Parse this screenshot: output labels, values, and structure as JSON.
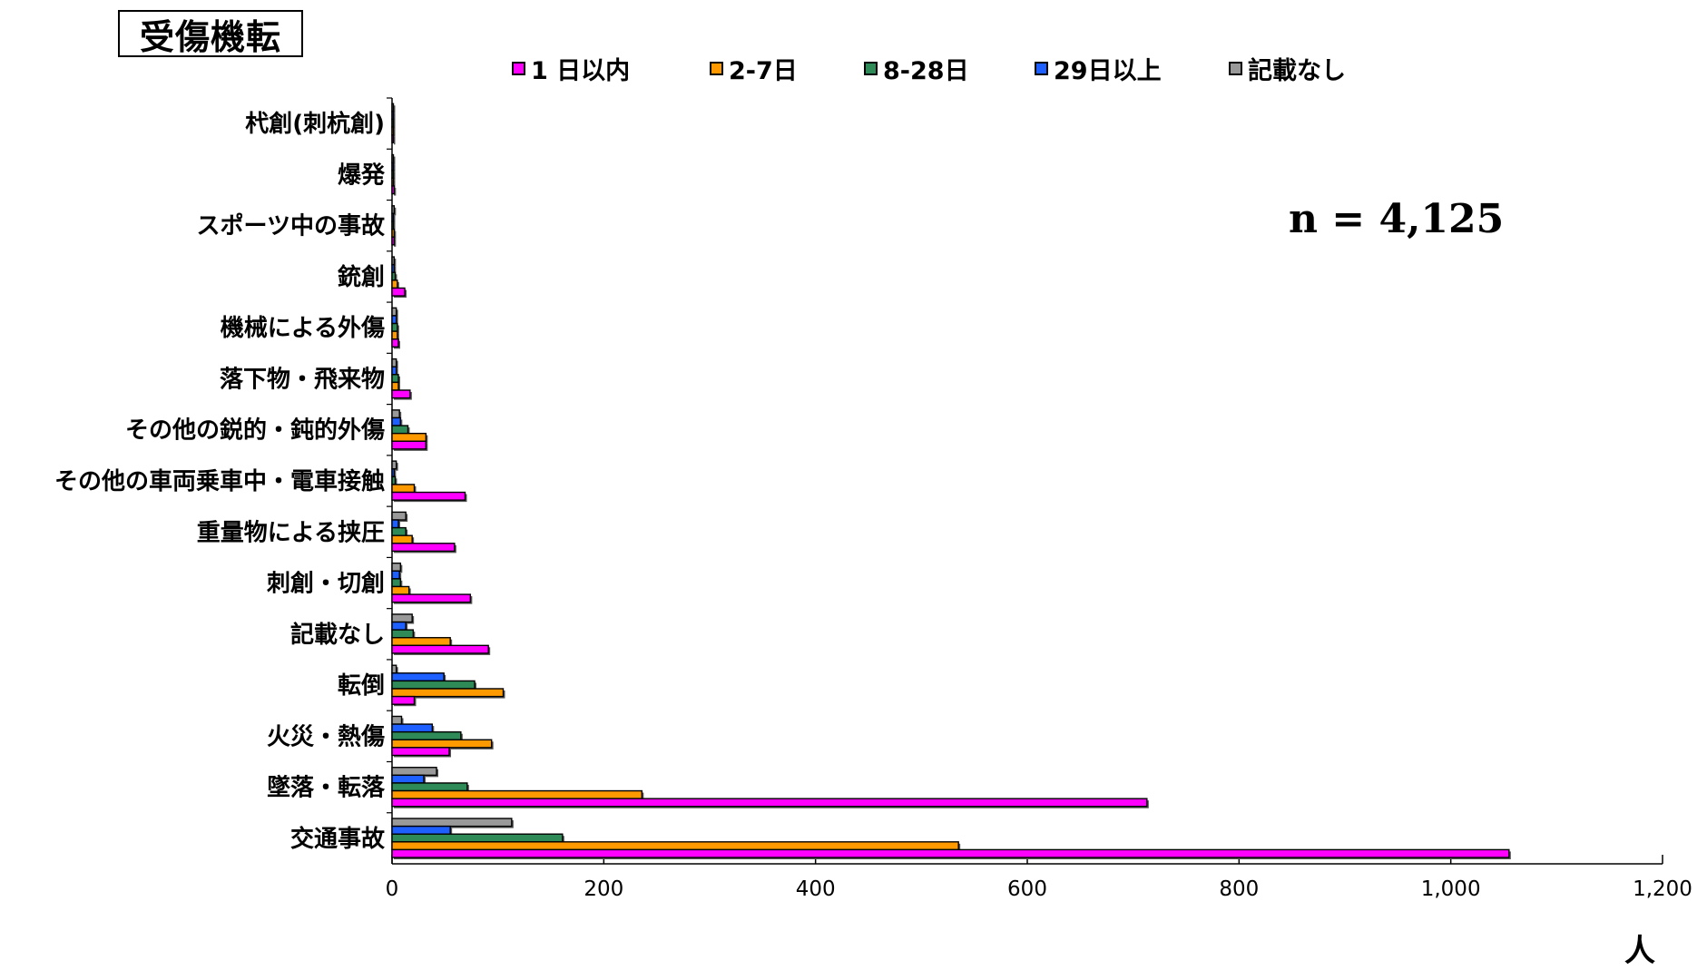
{
  "chart_data": {
    "type": "bar",
    "orientation": "horizontal",
    "title": "受傷機転",
    "annotation": "n = 4,125",
    "xlabel": "人",
    "xlim": [
      0,
      1200
    ],
    "x_ticks": [
      "0",
      "200",
      "400",
      "600",
      "800",
      "1,000",
      "1,200"
    ],
    "categories": [
      "交通事故",
      "墜落・転落",
      "火災・熱傷",
      "転倒",
      "記載なし",
      "刺創・切創",
      "重量物による挟圧",
      "その他の車両乗車中・電車接触",
      "その他の鋭的・鈍的外傷",
      "落下物・飛来物",
      "機械による外傷",
      "銃創",
      "スポーツ中の事故",
      "爆発",
      "杙創(刺杭創)"
    ],
    "series": [
      {
        "name": "1 日以内",
        "color": "#ff00ff",
        "values": [
          1055,
          713,
          54,
          21,
          91,
          74,
          59,
          69,
          32,
          17,
          6,
          12,
          2,
          2,
          1
        ]
      },
      {
        "name": "2-7日",
        "color": "#ff9900",
        "values": [
          535,
          236,
          94,
          105,
          55,
          16,
          19,
          21,
          32,
          6,
          5,
          5,
          2,
          1,
          1
        ]
      },
      {
        "name": "8-28日",
        "color": "#2e8b57",
        "values": [
          161,
          71,
          65,
          78,
          20,
          8,
          13,
          3,
          15,
          6,
          5,
          3,
          1,
          1,
          1
        ]
      },
      {
        "name": "29日以上",
        "color": "#1e5fff",
        "values": [
          55,
          30,
          38,
          49,
          13,
          7,
          6,
          2,
          8,
          4,
          4,
          2,
          1,
          1,
          1
        ]
      },
      {
        "name": "記載なし",
        "color": "#999999",
        "values": [
          113,
          42,
          9,
          4,
          19,
          8,
          13,
          4,
          7,
          4,
          4,
          2,
          2,
          1,
          1
        ]
      }
    ]
  }
}
